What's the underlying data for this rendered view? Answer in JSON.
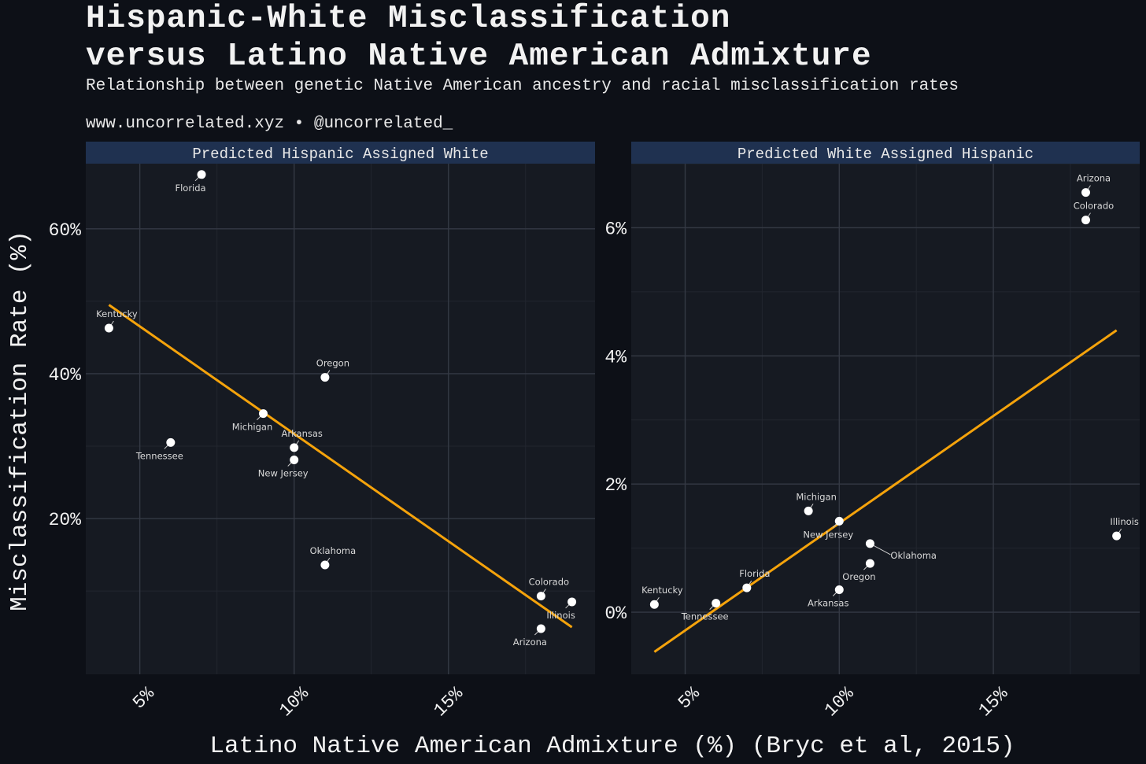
{
  "chart_data": {
    "type": "scatter",
    "title": "Hispanic-White Misclassification\nversus Latino Native American Admixture",
    "subtitle": "Relationship between genetic Native American ancestry and racial misclassification rates",
    "credit": "www.uncorrelated.xyz • @uncorrelated_",
    "xlabel": "Latino Native American Admixture (%) (Bryc et al, 2015)",
    "ylabel": "Misclassification Rate (%)",
    "colors": {
      "background": "#0d1017",
      "panel": "#161a22",
      "strip": "#1f3150",
      "grid_major": "#343944",
      "grid_minor": "#22262f",
      "point": "#ffffff",
      "trend": "#f5a30b",
      "label": "#d9d9d9"
    },
    "panels": [
      {
        "strip": "Predicted Hispanic Assigned White",
        "xlim": [
          3.25,
          19.75
        ],
        "ylim": [
          -1.5,
          69
        ],
        "yticks": [
          20,
          40,
          60
        ],
        "ytick_labels": [
          "20%",
          "40%",
          "60%"
        ],
        "xticks": [
          5,
          10,
          15
        ],
        "xtick_labels": [
          "5%",
          "10%",
          "15%"
        ],
        "trend": [
          [
            4,
            49.5
          ],
          [
            19,
            5.0
          ]
        ],
        "points": [
          {
            "state": "Florida",
            "x": 7,
            "y": 67.5,
            "label_pos": "below"
          },
          {
            "state": "Kentucky",
            "x": 4,
            "y": 46.3,
            "label_pos": "above"
          },
          {
            "state": "Oregon",
            "x": 11,
            "y": 39.5,
            "label_pos": "above"
          },
          {
            "state": "Michigan",
            "x": 9,
            "y": 34.5,
            "label_pos": "below"
          },
          {
            "state": "Arkansas",
            "x": 10,
            "y": 29.8,
            "label_pos": "above"
          },
          {
            "state": "Tennessee",
            "x": 6,
            "y": 30.5,
            "label_pos": "below"
          },
          {
            "state": "New Jersey",
            "x": 10,
            "y": 28.1,
            "label_pos": "below"
          },
          {
            "state": "Oklahoma",
            "x": 11,
            "y": 13.6,
            "label_pos": "above"
          },
          {
            "state": "Colorado",
            "x": 18,
            "y": 9.3,
            "label_pos": "above"
          },
          {
            "state": "Illinois",
            "x": 19,
            "y": 8.5,
            "label_pos": "below"
          },
          {
            "state": "Arizona",
            "x": 18,
            "y": 4.8,
            "label_pos": "below"
          }
        ]
      },
      {
        "strip": "Predicted White Assigned Hispanic",
        "xlim": [
          3.25,
          19.75
        ],
        "ylim": [
          -0.97,
          7.0
        ],
        "yticks": [
          0,
          2,
          4,
          6
        ],
        "ytick_labels": [
          "0%",
          "2%",
          "4%",
          "6%"
        ],
        "xticks": [
          5,
          10,
          15
        ],
        "xtick_labels": [
          "5%",
          "10%",
          "15%"
        ],
        "trend": [
          [
            4,
            -0.62
          ],
          [
            19,
            4.4
          ]
        ],
        "points": [
          {
            "state": "Arizona",
            "x": 18,
            "y": 6.55,
            "label_pos": "above"
          },
          {
            "state": "Colorado",
            "x": 18,
            "y": 6.12,
            "label_pos": "above"
          },
          {
            "state": "Illinois",
            "x": 19,
            "y": 1.19,
            "label_pos": "above"
          },
          {
            "state": "Michigan",
            "x": 9,
            "y": 1.58,
            "label_pos": "above"
          },
          {
            "state": "New Jersey",
            "x": 10,
            "y": 1.42,
            "label_pos": "below"
          },
          {
            "state": "Oklahoma",
            "x": 11,
            "y": 1.07,
            "label_pos": "right"
          },
          {
            "state": "Oregon",
            "x": 11,
            "y": 0.76,
            "label_pos": "below"
          },
          {
            "state": "Florida",
            "x": 7,
            "y": 0.38,
            "label_pos": "above"
          },
          {
            "state": "Arkansas",
            "x": 10,
            "y": 0.35,
            "label_pos": "below"
          },
          {
            "state": "Kentucky",
            "x": 4,
            "y": 0.12,
            "label_pos": "above"
          },
          {
            "state": "Tennessee",
            "x": 6,
            "y": 0.14,
            "label_pos": "below"
          }
        ]
      }
    ]
  }
}
